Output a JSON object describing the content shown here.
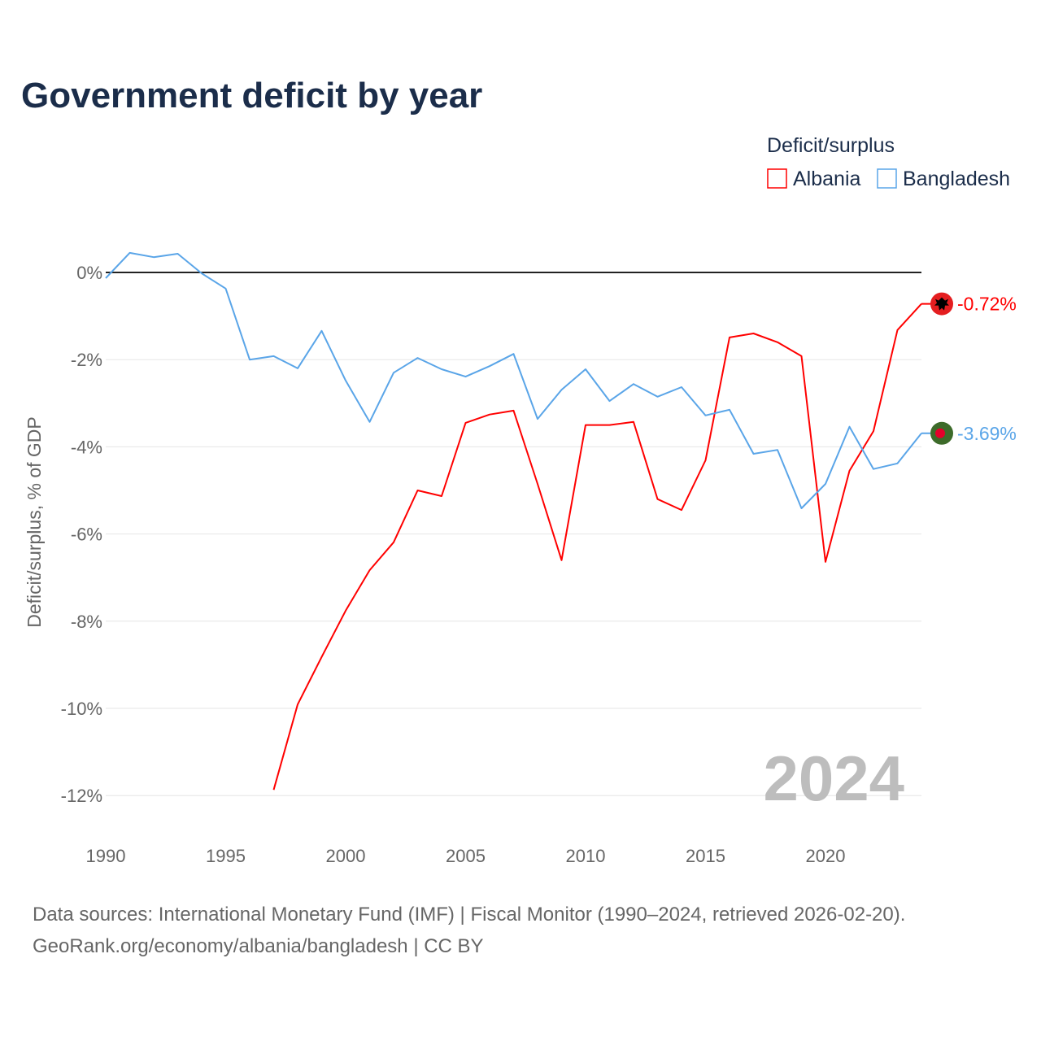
{
  "title": "Government deficit by year",
  "legend": {
    "title": "Deficit/surplus",
    "items": [
      {
        "label": "Albania",
        "color": "#ff0000"
      },
      {
        "label": "Bangladesh",
        "color": "#5aa5e8"
      }
    ]
  },
  "watermark_year": "2024",
  "source_line1": "Data sources: International Monetary Fund (IMF) | Fiscal Monitor (1990–2024, retrieved 2026-02-20).",
  "source_line2": "GeoRank.org/economy/albania/bangladesh | CC BY",
  "chart_data": {
    "type": "line",
    "title": "Government deficit by year",
    "xlabel": "",
    "ylabel": "Deficit/surplus, % of GDP",
    "xlim": [
      1990,
      2024
    ],
    "ylim": [
      -12,
      0
    ],
    "x_ticks": [
      1990,
      1995,
      2000,
      2005,
      2010,
      2015,
      2020
    ],
    "x_tick_labels": [
      "1990",
      "1995",
      "2000",
      "2005",
      "2010",
      "2015",
      "2020"
    ],
    "y_ticks": [
      0,
      -2,
      -4,
      -6,
      -8,
      -10,
      -12
    ],
    "y_tick_labels": [
      "0%",
      "-2%",
      "-4%",
      "-6%",
      "-8%",
      "-10%",
      "-12%"
    ],
    "grid": true,
    "legend_position": "top-right",
    "series": [
      {
        "name": "Albania",
        "color": "#ff0000",
        "end_label": "-0.72%",
        "x": [
          1997,
          1998,
          1999,
          2000,
          2001,
          2002,
          2003,
          2004,
          2005,
          2006,
          2007,
          2008,
          2009,
          2010,
          2011,
          2012,
          2013,
          2014,
          2015,
          2016,
          2017,
          2018,
          2019,
          2020,
          2021,
          2022,
          2023,
          2024
        ],
        "values": [
          -11.87,
          -9.91,
          -8.82,
          -7.76,
          -6.83,
          -6.19,
          -5.0,
          -5.13,
          -3.45,
          -3.26,
          -3.17,
          -4.85,
          -6.6,
          -3.5,
          -3.5,
          -3.43,
          -5.2,
          -5.45,
          -4.31,
          -1.49,
          -1.4,
          -1.6,
          -1.92,
          -6.64,
          -4.55,
          -3.64,
          -1.32,
          -0.72
        ]
      },
      {
        "name": "Bangladesh",
        "color": "#5aa5e8",
        "end_label": "-3.69%",
        "x": [
          1990,
          1991,
          1992,
          1993,
          1994,
          1995,
          1996,
          1997,
          1998,
          1999,
          2000,
          2001,
          2002,
          2003,
          2004,
          2005,
          2006,
          2007,
          2008,
          2009,
          2010,
          2011,
          2012,
          2013,
          2014,
          2015,
          2016,
          2017,
          2018,
          2019,
          2020,
          2021,
          2022,
          2023,
          2024
        ],
        "values": [
          -0.13,
          0.45,
          0.35,
          0.43,
          -0.02,
          -0.37,
          -2.0,
          -1.92,
          -2.2,
          -1.34,
          -2.48,
          -3.43,
          -2.3,
          -1.96,
          -2.22,
          -2.39,
          -2.15,
          -1.87,
          -3.36,
          -2.69,
          -2.22,
          -2.95,
          -2.56,
          -2.85,
          -2.63,
          -3.28,
          -3.15,
          -4.16,
          -4.07,
          -5.41,
          -4.85,
          -3.54,
          -4.51,
          -4.38,
          -3.69
        ]
      }
    ]
  }
}
